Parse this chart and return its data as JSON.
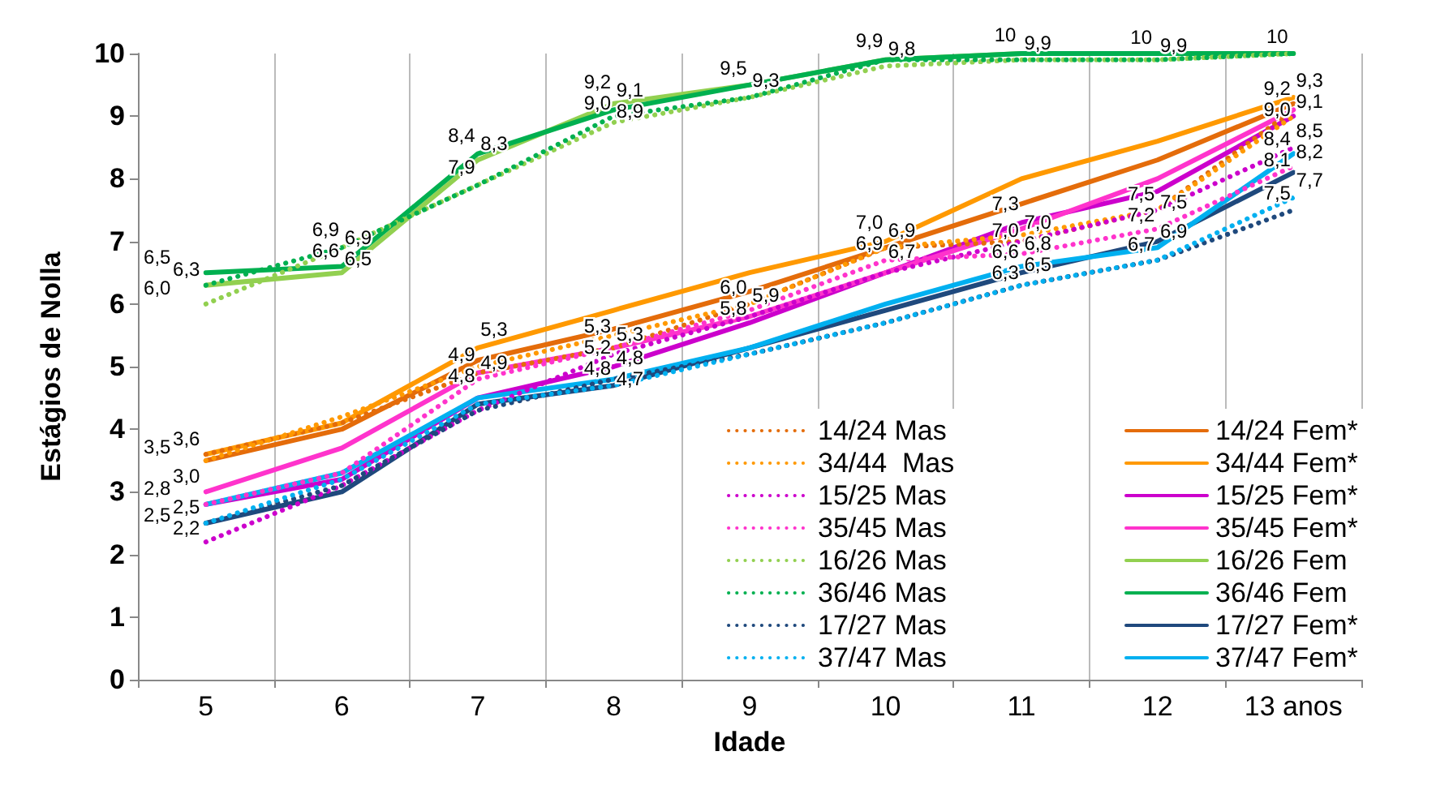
{
  "chart_data": {
    "type": "line",
    "xlabel": "Idade",
    "ylabel": "Estágios de Nolla",
    "categories": [
      "5",
      "6",
      "7",
      "8",
      "9",
      "10",
      "11",
      "12",
      "13 anos"
    ],
    "ylim": [
      0,
      10
    ],
    "yticks": [
      0,
      1,
      2,
      3,
      4,
      5,
      6,
      7,
      8,
      9,
      10
    ],
    "grid": "x",
    "legend": "bottom right",
    "marker": "none",
    "series": [
      {
        "name": "14/24 Mas",
        "color": "#e46c0a",
        "line_style": "dotted",
        "values": [
          3.6,
          4.1,
          4.9,
          5.3,
          6.0,
          6.9,
          7.0,
          7.5,
          9.1
        ],
        "value_labels": [
          "3,6",
          null,
          "4,9",
          "5,3",
          "6,0",
          "6,9",
          "7,0",
          "7,5",
          "9,1"
        ]
      },
      {
        "name": "34/44  Mas",
        "color": "#ff9900",
        "line_style": "dotted",
        "values": [
          3.5,
          4.2,
          5.0,
          5.5,
          6.0,
          6.9,
          7.1,
          7.5,
          9.0
        ],
        "value_labels": [
          "3,5",
          null,
          null,
          null,
          null,
          null,
          null,
          "7,5",
          null
        ]
      },
      {
        "name": "15/25 Mas",
        "color": "#cc00cc",
        "line_style": "dotted",
        "values": [
          2.2,
          3.1,
          4.3,
          5.2,
          5.8,
          6.5,
          7.0,
          7.5,
          8.5
        ],
        "value_labels": [
          "2,2",
          null,
          null,
          "5,2",
          "5,8",
          null,
          "7,0",
          null,
          "8,5"
        ]
      },
      {
        "name": "35/45 Mas",
        "color": "#ff33cc",
        "line_style": "dotted",
        "values": [
          2.8,
          3.3,
          4.8,
          5.3,
          5.9,
          6.7,
          6.8,
          7.2,
          8.2
        ],
        "value_labels": [
          "2,8",
          null,
          "4,8",
          "5,3",
          "5,9",
          "6,7",
          "6,8",
          "7,2",
          "8,2"
        ]
      },
      {
        "name": "16/26 Mas",
        "color": "#92d050",
        "line_style": "dotted",
        "values": [
          6.0,
          6.9,
          7.9,
          8.9,
          9.3,
          9.8,
          9.9,
          9.9,
          10
        ],
        "value_labels": [
          "6,0",
          "6,9",
          "7,9",
          "8,9",
          "9,3",
          "9,8",
          null,
          null,
          null
        ]
      },
      {
        "name": "36/46 Mas",
        "color": "#00b050",
        "line_style": "dotted",
        "values": [
          6.3,
          6.9,
          7.9,
          9.0,
          9.3,
          9.9,
          9.9,
          9.9,
          10
        ],
        "value_labels": [
          "6,3",
          "6,9",
          null,
          "9,0",
          null,
          null,
          "9,9",
          "9,9",
          null
        ]
      },
      {
        "name": "17/27 Mas",
        "color": "#1f497d",
        "line_style": "dotted",
        "values": [
          2.5,
          3.1,
          4.3,
          4.8,
          5.2,
          5.7,
          6.3,
          6.7,
          7.5
        ],
        "value_labels": [
          "2,5",
          null,
          null,
          "4,8",
          null,
          null,
          "6,3",
          "6,7",
          "7,5"
        ]
      },
      {
        "name": "37/47 Mas",
        "color": "#00b0f0",
        "line_style": "dotted",
        "values": [
          2.5,
          3.2,
          4.4,
          4.7,
          5.2,
          5.7,
          6.3,
          6.7,
          7.7
        ],
        "value_labels": [
          null,
          null,
          null,
          null,
          null,
          null,
          null,
          null,
          "7,7"
        ]
      },
      {
        "name": "14/24 Fem*",
        "color": "#e46c0a",
        "line_style": "solid",
        "values": [
          3.5,
          4.0,
          5.1,
          5.6,
          6.2,
          6.9,
          7.6,
          8.3,
          9.2
        ],
        "value_labels": [
          null,
          null,
          null,
          null,
          null,
          "6,9",
          null,
          null,
          "9,2"
        ]
      },
      {
        "name": "34/44 Fem*",
        "color": "#ff9900",
        "line_style": "solid",
        "values": [
          3.6,
          4.1,
          5.3,
          5.9,
          6.5,
          7.0,
          8.0,
          8.6,
          9.3
        ],
        "value_labels": [
          null,
          null,
          "5,3",
          null,
          null,
          "7,0",
          null,
          null,
          "9,3"
        ]
      },
      {
        "name": "15/25 Fem*",
        "color": "#cc00cc",
        "line_style": "solid",
        "values": [
          2.8,
          3.2,
          4.5,
          5.0,
          5.7,
          6.5,
          7.3,
          7.8,
          9.0
        ],
        "value_labels": [
          null,
          null,
          null,
          null,
          null,
          null,
          "7,3",
          null,
          "9,0"
        ]
      },
      {
        "name": "35/45 Fem*",
        "color": "#ff33cc",
        "line_style": "solid",
        "values": [
          3.0,
          3.7,
          4.9,
          5.3,
          5.8,
          6.5,
          7.2,
          8.0,
          9.1
        ],
        "value_labels": [
          "3,0",
          null,
          "4,9",
          null,
          null,
          null,
          null,
          null,
          null
        ]
      },
      {
        "name": "16/26 Fem",
        "color": "#92d050",
        "line_style": "solid",
        "values": [
          6.3,
          6.5,
          8.3,
          9.2,
          9.5,
          9.9,
          10,
          10,
          10
        ],
        "value_labels": [
          null,
          "6,5",
          "8,3",
          "9,2",
          "9,5",
          "9,9",
          null,
          null,
          null
        ]
      },
      {
        "name": "36/46 Fem",
        "color": "#00b050",
        "line_style": "solid",
        "values": [
          6.5,
          6.6,
          8.4,
          9.1,
          9.5,
          9.9,
          10,
          10,
          10
        ],
        "value_labels": [
          "6,5",
          "6,6",
          "8,4",
          "9,1",
          null,
          null,
          "10",
          "10",
          "10"
        ]
      },
      {
        "name": "17/27 Fem*",
        "color": "#1f497d",
        "line_style": "solid",
        "values": [
          2.5,
          3.0,
          4.4,
          4.7,
          5.3,
          5.9,
          6.5,
          7.0,
          8.1
        ],
        "value_labels": [
          "2,5",
          null,
          null,
          "4,7",
          null,
          null,
          "6,5",
          null,
          "8,1"
        ]
      },
      {
        "name": "37/47 Fem*",
        "color": "#00b0f0",
        "line_style": "solid",
        "values": [
          2.8,
          3.3,
          4.5,
          4.8,
          5.3,
          6.0,
          6.6,
          6.9,
          8.4
        ],
        "value_labels": [
          null,
          null,
          null,
          "4,8",
          null,
          null,
          "6,6",
          "6,9",
          "8,4"
        ]
      }
    ]
  }
}
